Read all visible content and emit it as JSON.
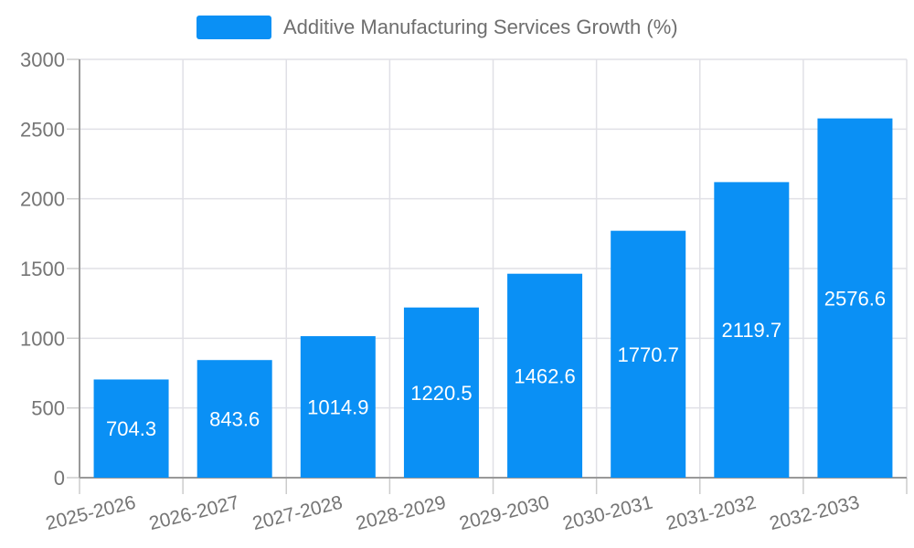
{
  "chart_data": {
    "type": "bar",
    "title": "Additive Manufacturing Services Growth (%)",
    "legend_entries": [
      "Additive Manufacturing Services Growth (%)"
    ],
    "legend_position": "top-center",
    "categories": [
      "2025-2026",
      "2026-2027",
      "2027-2028",
      "2028-2029",
      "2029-2030",
      "2030-2031",
      "2031-2032",
      "2032-2033"
    ],
    "values": [
      704.3,
      843.6,
      1014.9,
      1220.5,
      1462.6,
      1770.7,
      2119.7,
      2576.6
    ],
    "value_labels_position": "inside-center",
    "xlabel": "",
    "ylabel": "",
    "ylim": [
      0,
      3000
    ],
    "yticks": [
      0,
      500,
      1000,
      1500,
      2000,
      2500,
      3000
    ],
    "grid": true,
    "x_tick_label_rotation_deg": -14,
    "colors": {
      "bar": "#0a90f5",
      "value_label": "#ffffff",
      "axis_line": "#999999",
      "tick_mark": "#cccccc",
      "grid_line": "#e0e0e6",
      "tick_label": "#757575",
      "legend_text": "#6e6e6e",
      "background": "#ffffff"
    }
  }
}
